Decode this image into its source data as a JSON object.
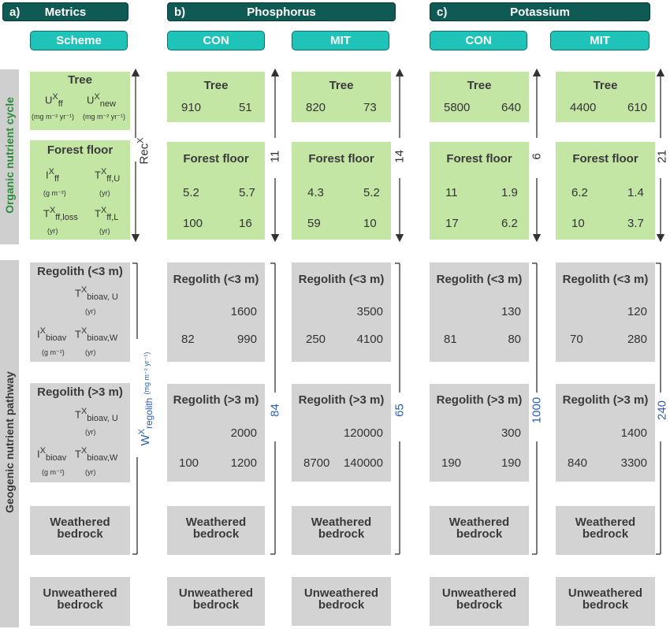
{
  "headers": {
    "a_letter": "a)",
    "a_title": "Metrics",
    "b_letter": "b)",
    "b_title": "Phosphorus",
    "c_letter": "c)",
    "c_title": "Potassium"
  },
  "subheaders": {
    "scheme": "Scheme",
    "con": "CON",
    "mit": "MIT"
  },
  "side_labels": {
    "organic": "Organic nutrient cycle",
    "geogenic": "Geogenic nutrient pathway"
  },
  "box_titles": {
    "tree": "Tree",
    "forest_floor": "Forest floor",
    "regolith_shallow": "Regolith (<3 m)",
    "regolith_deep": "Regolith (>3 m)",
    "weathered_1": "Weathered",
    "weathered_2": "bedrock",
    "unweathered_1": "Unweathered",
    "unweathered_2": "bedrock"
  },
  "scheme": {
    "u_ff": "U",
    "u_ff_sup": "X",
    "u_ff_sub": "ff",
    "u_new": "U",
    "u_new_sup": "X",
    "u_new_sub": "new",
    "unit_flux": "(mg m⁻² yr⁻¹)",
    "i_ff": "I",
    "i_ff_sup": "X",
    "i_ff_sub": "ff",
    "unit_gm2": "(g m⁻²)",
    "t_ffu": "T",
    "t_ffu_sup": "X",
    "t_ffu_sub": "ff,U",
    "unit_yr": "(yr)",
    "t_ffloss": "T",
    "t_ffloss_sup": "X",
    "t_ffloss_sub": "ff,loss",
    "t_ffl": "T",
    "t_ffl_sup": "X",
    "t_ffl_sub": "ff,L",
    "t_bioav_u": "T",
    "t_bioav_u_sup": "X",
    "t_bioav_u_sub": "bioav, U",
    "i_bioav": "I",
    "i_bioav_sup": "X",
    "i_bioav_sub": "bioav",
    "t_bioav_w": "T",
    "t_bioav_w_sup": "X",
    "t_bioav_w_sub": "bioav,W",
    "rec": "Rec",
    "rec_sup": "X",
    "w_regolith": "W",
    "w_regolith_sup": "X",
    "w_regolith_sub": "regolith",
    "w_unit": "(mg m⁻² yr⁻¹)"
  },
  "columns": {
    "p_con": {
      "tree": [
        "910",
        "51"
      ],
      "ff": [
        "5.2",
        "5.7",
        "100",
        "16"
      ],
      "reg_s": [
        "1600",
        "82",
        "990"
      ],
      "reg_d": [
        "2000",
        "100",
        "1200"
      ],
      "rec": "11",
      "w": "84"
    },
    "p_mit": {
      "tree": [
        "820",
        "73"
      ],
      "ff": [
        "4.3",
        "5.2",
        "59",
        "10"
      ],
      "reg_s": [
        "3500",
        "250",
        "4100"
      ],
      "reg_d": [
        "120000",
        "8700",
        "140000"
      ],
      "rec": "14",
      "w": "65"
    },
    "k_con": {
      "tree": [
        "5800",
        "640"
      ],
      "ff": [
        "11",
        "1.9",
        "17",
        "6.2"
      ],
      "reg_s": [
        "130",
        "81",
        "80"
      ],
      "reg_d": [
        "300",
        "190",
        "190"
      ],
      "rec": "6",
      "w": "1000"
    },
    "k_mit": {
      "tree": [
        "4400",
        "610"
      ],
      "ff": [
        "6.2",
        "1.4",
        "10",
        "3.7"
      ],
      "reg_s": [
        "120",
        "70",
        "280"
      ],
      "reg_d": [
        "1400",
        "840",
        "3300"
      ],
      "rec": "21",
      "w": "240"
    }
  },
  "colors": {
    "header": "#0f5a54",
    "subheader": "#20c3b8",
    "organic_box": "#c4e6a5",
    "geogenic_box": "#d3d3d3",
    "organic_label": "#2c8c3a",
    "flux_label": "#2f5fad"
  }
}
